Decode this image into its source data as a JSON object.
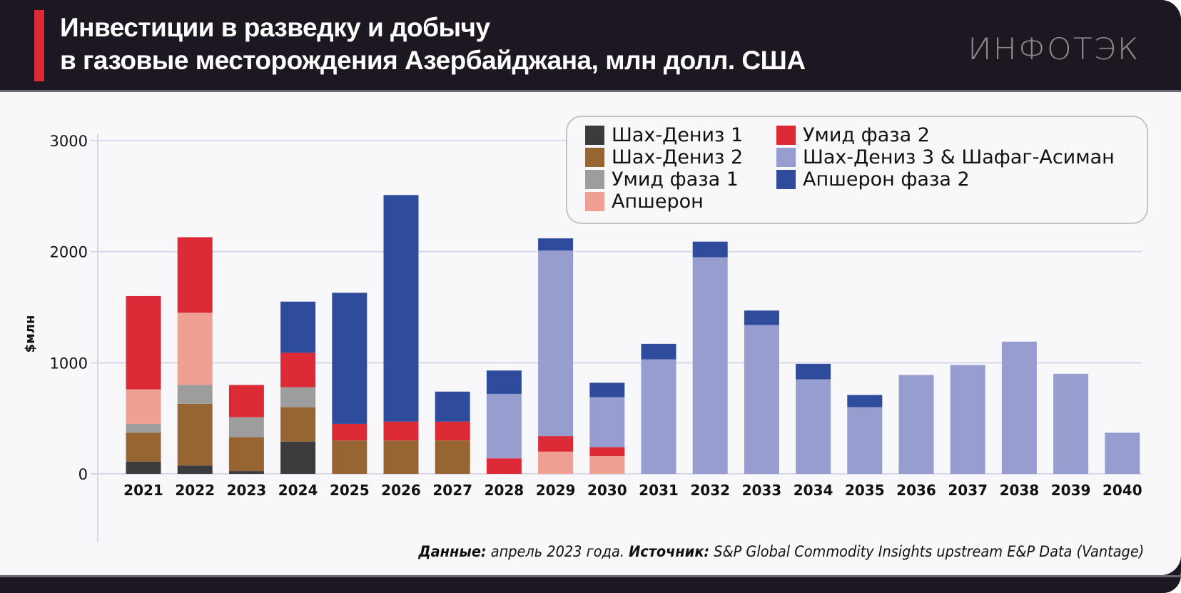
{
  "header": {
    "title_line1": "Инвестиции в разведку и добычу",
    "title_line2": "в газовые месторождения Азербайджана, млн долл. США",
    "logo": "ИНФОТЭК"
  },
  "footer": {
    "data_label": "Данные:",
    "data_text": " апрель 2023 года. ",
    "source_label": "Источник:",
    "source_text": " S&P Global Commodity Insights upstream E&P Data (Vantage)"
  },
  "colors": {
    "header_bg": "#1c1721",
    "accent_red": "#dc2b37",
    "panel_bg": "#f8f8fb"
  },
  "chart_data": {
    "type": "bar",
    "stacked": true,
    "title": "Инвестиции в разведку и добычу в газовые месторождения Азербайджана, млн долл. США",
    "xlabel": "",
    "ylabel": "$млн",
    "ylim": [
      0,
      3000
    ],
    "yticks": [
      0,
      1000,
      2000,
      3000
    ],
    "grid": true,
    "legend_position": "top-right",
    "categories": [
      "2021",
      "2022",
      "2023",
      "2024",
      "2025",
      "2026",
      "2027",
      "2028",
      "2029",
      "2030",
      "2031",
      "2032",
      "2033",
      "2034",
      "2035",
      "2036",
      "2037",
      "2038",
      "2039",
      "2040"
    ],
    "series": [
      {
        "name": "Шах-Дениз 1",
        "color": "#3b3b3d",
        "values": [
          110,
          75,
          25,
          290,
          0,
          0,
          0,
          0,
          0,
          0,
          0,
          0,
          0,
          0,
          0,
          0,
          0,
          0,
          0,
          0
        ]
      },
      {
        "name": "Шах-Дениз 2",
        "color": "#966532",
        "values": [
          260,
          555,
          305,
          310,
          300,
          300,
          300,
          0,
          0,
          0,
          0,
          0,
          0,
          0,
          0,
          0,
          0,
          0,
          0,
          0
        ]
      },
      {
        "name": "Умид фаза 1",
        "color": "#9d9d9d",
        "values": [
          80,
          170,
          180,
          180,
          0,
          0,
          0,
          0,
          0,
          0,
          0,
          0,
          0,
          0,
          0,
          0,
          0,
          0,
          0,
          0
        ]
      },
      {
        "name": "Апшерон",
        "color": "#eea093",
        "values": [
          310,
          650,
          0,
          0,
          0,
          0,
          0,
          0,
          200,
          160,
          0,
          0,
          0,
          0,
          0,
          0,
          0,
          0,
          0,
          0
        ]
      },
      {
        "name": "Умид фаза 2",
        "color": "#dc2b37",
        "values": [
          840,
          680,
          290,
          310,
          150,
          170,
          170,
          140,
          140,
          80,
          0,
          0,
          0,
          0,
          0,
          0,
          0,
          0,
          0,
          0
        ]
      },
      {
        "name": "Шах-Дениз 3 & Шафаг-Асиман",
        "color": "#979ecf",
        "values": [
          0,
          0,
          0,
          0,
          0,
          0,
          0,
          580,
          1670,
          450,
          1030,
          1950,
          1340,
          850,
          600,
          890,
          980,
          1190,
          900,
          370
        ]
      },
      {
        "name": "Апшерон фаза 2",
        "color": "#2e4c9b",
        "values": [
          0,
          0,
          0,
          460,
          1180,
          2040,
          270,
          210,
          110,
          130,
          140,
          140,
          130,
          140,
          110,
          0,
          0,
          0,
          0,
          0
        ]
      }
    ]
  },
  "legend": {
    "items": [
      {
        "label": "Шах-Дениз 1",
        "color": "#3b3b3d"
      },
      {
        "label": "Шах-Дениз 2",
        "color": "#966532"
      },
      {
        "label": "Умид фаза 1",
        "color": "#9d9d9d"
      },
      {
        "label": "Апшерон",
        "color": "#eea093"
      },
      {
        "label": "Умид фаза 2",
        "color": "#dc2b37"
      },
      {
        "label": "Шах-Дениз 3 & Шафаг-Асиман",
        "color": "#979ecf"
      },
      {
        "label": "Апшерон фаза 2",
        "color": "#2e4c9b"
      }
    ]
  }
}
